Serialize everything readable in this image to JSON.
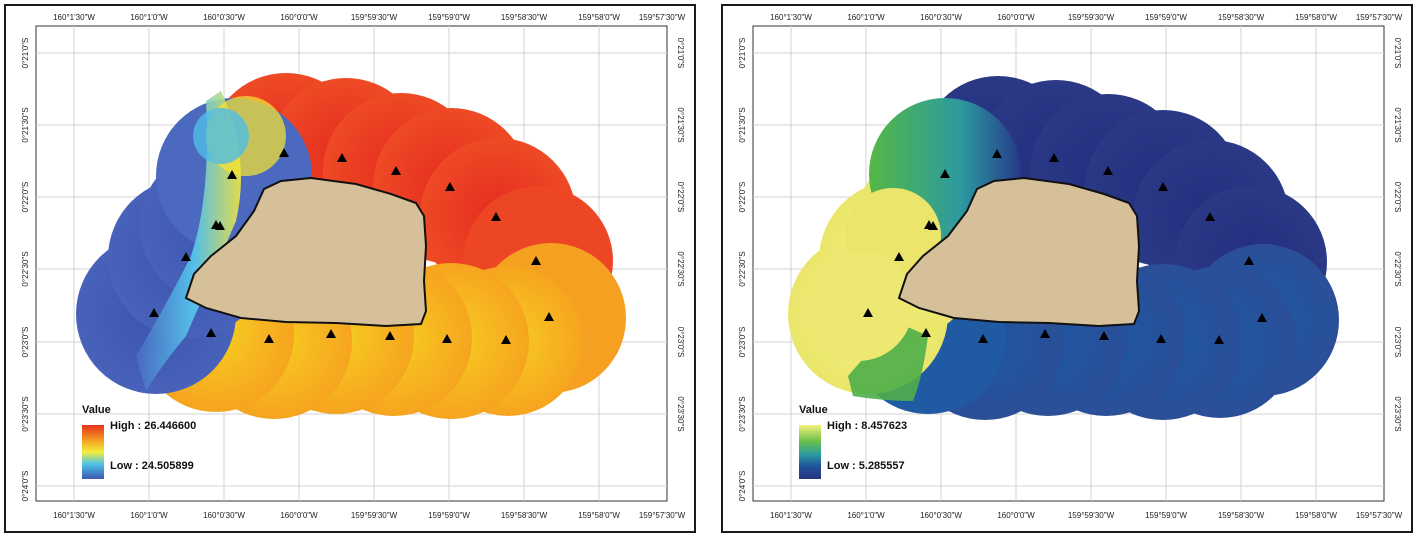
{
  "maps": [
    {
      "x_ticks": [
        "160°1'30\"W",
        "160°1'0\"W",
        "160°0'30\"W",
        "160°0'0\"W",
        "159°59'30\"W",
        "159°59'0\"W",
        "159°58'30\"W",
        "159°58'0\"W",
        "159°57'30\"W"
      ],
      "y_ticks": [
        "0°21'0\"S",
        "0°21'30\"S",
        "0°22'0\"S",
        "0°22'30\"S",
        "0°23'0\"S",
        "0°23'30\"S",
        "0°24'0\"S"
      ],
      "legend": {
        "title": "Value",
        "high": "High : 26.446600",
        "low": "Low : 24.505899",
        "ramp_colors": [
          "#e8321e",
          "#f5a523",
          "#f3ee3a",
          "#4fc3e8",
          "#3f58b5"
        ]
      }
    },
    {
      "x_ticks": [
        "160°1'30\"W",
        "160°1'0\"W",
        "160°0'30\"W",
        "160°0'0\"W",
        "159°59'30\"W",
        "159°59'0\"W",
        "159°58'30\"W",
        "159°58'0\"W",
        "159°57'30\"W"
      ],
      "y_ticks": [
        "0°21'0\"S",
        "0°21'30\"S",
        "0°22'0\"S",
        "0°22'30\"S",
        "0°23'0\"S",
        "0°23'30\"S",
        "0°24'0\"S"
      ],
      "legend": {
        "title": "Value",
        "high": "High : 8.457623",
        "low": "Low : 5.285557",
        "ramp_colors": [
          "#f3f07a",
          "#6cc04a",
          "#2a9aa0",
          "#1f4f9a",
          "#27337f"
        ]
      }
    }
  ]
}
